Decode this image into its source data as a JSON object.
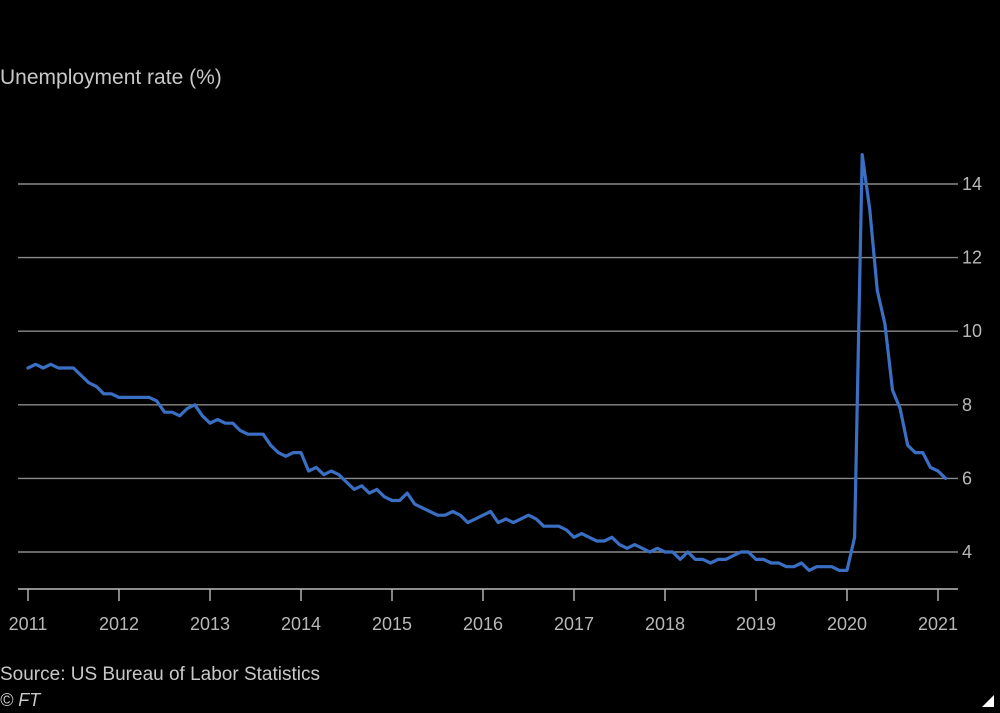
{
  "chart_data": {
    "type": "line",
    "title": "Unemployment rate (%)",
    "xlabel": "",
    "ylabel": "",
    "x_axis": {
      "tick_labels": [
        "2011",
        "2012",
        "2013",
        "2014",
        "2015",
        "2016",
        "2017",
        "2018",
        "2019",
        "2020",
        "2021"
      ],
      "range": [
        2011.0,
        2021.25
      ]
    },
    "y_axis": {
      "tick_labels": [
        "4",
        "6",
        "8",
        "10",
        "12",
        "14"
      ],
      "ticks": [
        4,
        6,
        8,
        10,
        12,
        14
      ],
      "range": [
        3.0,
        15.0
      ],
      "position": "right"
    },
    "grid": true,
    "legend": "none",
    "series": [
      {
        "color": "#3a6fc4",
        "x": [
          2011.0,
          2011.083,
          2011.167,
          2011.25,
          2011.333,
          2011.417,
          2011.5,
          2011.583,
          2011.667,
          2011.75,
          2011.833,
          2011.917,
          2012.0,
          2012.083,
          2012.167,
          2012.25,
          2012.333,
          2012.417,
          2012.5,
          2012.583,
          2012.667,
          2012.75,
          2012.833,
          2012.917,
          2013.0,
          2013.083,
          2013.167,
          2013.25,
          2013.333,
          2013.417,
          2013.5,
          2013.583,
          2013.667,
          2013.75,
          2013.833,
          2013.917,
          2014.0,
          2014.083,
          2014.167,
          2014.25,
          2014.333,
          2014.417,
          2014.5,
          2014.583,
          2014.667,
          2014.75,
          2014.833,
          2014.917,
          2015.0,
          2015.083,
          2015.167,
          2015.25,
          2015.333,
          2015.417,
          2015.5,
          2015.583,
          2015.667,
          2015.75,
          2015.833,
          2015.917,
          2016.0,
          2016.083,
          2016.167,
          2016.25,
          2016.333,
          2016.417,
          2016.5,
          2016.583,
          2016.667,
          2016.75,
          2016.833,
          2016.917,
          2017.0,
          2017.083,
          2017.167,
          2017.25,
          2017.333,
          2017.417,
          2017.5,
          2017.583,
          2017.667,
          2017.75,
          2017.833,
          2017.917,
          2018.0,
          2018.083,
          2018.167,
          2018.25,
          2018.333,
          2018.417,
          2018.5,
          2018.583,
          2018.667,
          2018.75,
          2018.833,
          2018.917,
          2019.0,
          2019.083,
          2019.167,
          2019.25,
          2019.333,
          2019.417,
          2019.5,
          2019.583,
          2019.667,
          2019.75,
          2019.833,
          2019.917,
          2020.0,
          2020.083,
          2020.167,
          2020.25,
          2020.333,
          2020.417,
          2020.5,
          2020.583,
          2020.667,
          2020.75,
          2020.833,
          2020.917,
          2021.0,
          2021.083
        ],
        "values": [
          9.0,
          9.1,
          9.0,
          9.1,
          9.0,
          9.0,
          9.0,
          8.8,
          8.6,
          8.5,
          8.3,
          8.3,
          8.2,
          8.2,
          8.2,
          8.2,
          8.2,
          8.1,
          7.8,
          7.8,
          7.7,
          7.9,
          8.0,
          7.7,
          7.5,
          7.6,
          7.5,
          7.5,
          7.3,
          7.2,
          7.2,
          7.2,
          6.9,
          6.7,
          6.6,
          6.7,
          6.7,
          6.2,
          6.3,
          6.1,
          6.2,
          6.1,
          5.9,
          5.7,
          5.8,
          5.6,
          5.7,
          5.5,
          5.4,
          5.4,
          5.6,
          5.3,
          5.2,
          5.1,
          5.0,
          5.0,
          5.1,
          5.0,
          4.8,
          4.9,
          5.0,
          5.1,
          4.8,
          4.9,
          4.8,
          4.9,
          5.0,
          4.9,
          4.7,
          4.7,
          4.7,
          4.6,
          4.4,
          4.5,
          4.4,
          4.3,
          4.3,
          4.4,
          4.2,
          4.1,
          4.2,
          4.1,
          4.0,
          4.1,
          4.0,
          4.0,
          3.8,
          4.0,
          3.8,
          3.8,
          3.7,
          3.8,
          3.8,
          3.9,
          4.0,
          4.0,
          3.8,
          3.8,
          3.7,
          3.7,
          3.6,
          3.6,
          3.7,
          3.5,
          3.6,
          3.6,
          3.6,
          3.5,
          3.5,
          4.4,
          14.8,
          13.3,
          11.1,
          10.2,
          8.4,
          7.9,
          6.9,
          6.7,
          6.7,
          6.3,
          6.2,
          6.0
        ]
      }
    ]
  },
  "source": "Source: US Bureau of Labor Statistics",
  "copyright": "© FT"
}
